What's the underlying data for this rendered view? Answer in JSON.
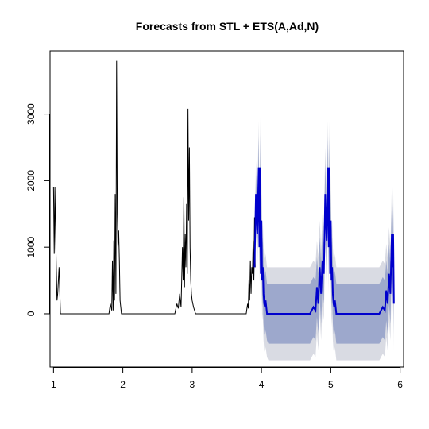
{
  "chart_data": {
    "type": "line",
    "title": "Forecasts from STL +  ETS(A,Ad,N)",
    "xlabel": "",
    "ylabel": "",
    "xlim": [
      0.95,
      6.05
    ],
    "ylim": [
      -800,
      3950
    ],
    "x_ticks": [
      1,
      2,
      3,
      4,
      5,
      6
    ],
    "y_ticks": [
      0,
      1000,
      2000,
      3000
    ],
    "grid": false,
    "legend": "none",
    "colors": {
      "history": "#000000",
      "forecast": "#0000cc",
      "band80": "#9da8cc",
      "band95": "#d9dbe3"
    },
    "history": {
      "x": [
        1.0,
        1.01,
        1.02,
        1.03,
        1.04,
        1.05,
        1.06,
        1.08,
        1.1,
        1.12,
        1.2,
        1.3,
        1.4,
        1.5,
        1.6,
        1.7,
        1.8,
        1.82,
        1.84,
        1.85,
        1.86,
        1.87,
        1.88,
        1.89,
        1.9,
        1.91,
        1.92,
        1.93,
        1.94,
        1.95,
        1.96,
        1.97,
        1.98,
        2.0,
        2.05,
        2.1,
        2.2,
        2.3,
        2.4,
        2.5,
        2.6,
        2.7,
        2.75,
        2.78,
        2.8,
        2.82,
        2.84,
        2.86,
        2.87,
        2.88,
        2.89,
        2.9,
        2.91,
        2.92,
        2.93,
        2.94,
        2.95,
        2.96,
        2.97,
        2.98,
        2.99,
        3.0,
        3.02,
        3.05,
        3.1,
        3.2,
        3.3,
        3.4,
        3.5,
        3.6,
        3.7,
        3.75,
        3.78,
        3.8,
        3.81,
        3.82,
        3.83,
        3.84,
        3.85,
        3.86,
        3.87,
        3.88,
        3.89,
        3.9,
        3.91
      ],
      "y": [
        1900,
        900,
        1900,
        1200,
        700,
        200,
        300,
        700,
        0,
        0,
        0,
        0,
        0,
        0,
        0,
        0,
        0,
        150,
        50,
        800,
        50,
        1100,
        200,
        1800,
        300,
        3800,
        1500,
        1000,
        1250,
        800,
        200,
        100,
        0,
        0,
        0,
        0,
        0,
        0,
        0,
        0,
        0,
        0,
        0,
        150,
        80,
        300,
        100,
        1000,
        500,
        1750,
        400,
        1200,
        700,
        1650,
        600,
        3080,
        1400,
        2500,
        1000,
        500,
        300,
        200,
        100,
        0,
        0,
        0,
        0,
        0,
        0,
        0,
        0,
        0,
        0,
        150,
        80,
        500,
        200,
        800,
        300,
        700,
        600,
        1100,
        500,
        1450,
        700
      ]
    },
    "forecast": {
      "x": [
        3.9,
        3.92,
        3.94,
        3.96,
        3.97,
        3.98,
        3.99,
        4.0,
        4.01,
        4.02,
        4.03,
        4.04,
        4.05,
        4.06,
        4.08,
        4.1,
        4.12,
        4.2,
        4.3,
        4.4,
        4.5,
        4.6,
        4.7,
        4.75,
        4.78,
        4.8,
        4.82,
        4.84,
        4.86,
        4.88,
        4.9,
        4.92,
        4.94,
        4.96,
        4.97,
        4.98,
        4.99,
        5.0,
        5.01,
        5.02,
        5.03,
        5.04,
        5.05,
        5.06,
        5.08,
        5.1,
        5.12,
        5.2,
        5.3,
        5.4,
        5.5,
        5.6,
        5.7,
        5.75,
        5.78,
        5.8,
        5.82,
        5.84,
        5.86,
        5.88,
        5.89,
        5.9,
        5.91
      ],
      "mean": [
        700,
        1800,
        1200,
        2200,
        1000,
        2200,
        600,
        1400,
        500,
        700,
        300,
        150,
        100,
        200,
        0,
        0,
        0,
        0,
        0,
        0,
        0,
        0,
        0,
        100,
        50,
        400,
        150,
        700,
        300,
        800,
        600,
        1800,
        1100,
        2200,
        1000,
        2200,
        600,
        1400,
        500,
        700,
        300,
        150,
        100,
        200,
        0,
        0,
        0,
        0,
        0,
        0,
        0,
        0,
        0,
        100,
        50,
        350,
        150,
        600,
        300,
        1200,
        700,
        1200,
        150
      ],
      "lower80": [
        500,
        1500,
        900,
        1750,
        650,
        1700,
        250,
        1000,
        100,
        250,
        -150,
        -300,
        -350,
        -250,
        -400,
        -450,
        -450,
        -450,
        -450,
        -450,
        -450,
        -450,
        -450,
        -350,
        -400,
        -50,
        -300,
        250,
        -150,
        350,
        150,
        1350,
        650,
        1750,
        550,
        1750,
        150,
        950,
        50,
        250,
        -150,
        -300,
        -350,
        -250,
        -450,
        -450,
        -450,
        -450,
        -450,
        -450,
        -450,
        -450,
        -450,
        -350,
        -400,
        -100,
        -300,
        150,
        -150,
        750,
        250,
        750,
        -300
      ],
      "upper80": [
        900,
        2100,
        1500,
        2650,
        1350,
        2700,
        950,
        1800,
        900,
        1150,
        750,
        600,
        550,
        650,
        450,
        450,
        450,
        450,
        450,
        450,
        450,
        450,
        450,
        550,
        500,
        850,
        600,
        1150,
        750,
        1250,
        1050,
        2250,
        1550,
        2650,
        1450,
        2650,
        1050,
        1850,
        950,
        1150,
        750,
        600,
        550,
        650,
        450,
        450,
        450,
        450,
        450,
        450,
        450,
        450,
        450,
        550,
        500,
        800,
        600,
        1050,
        750,
        1650,
        1150,
        1650,
        600
      ],
      "lower95": [
        400,
        1300,
        700,
        1500,
        450,
        1450,
        0,
        750,
        -100,
        0,
        -400,
        -550,
        -600,
        -500,
        -650,
        -700,
        -700,
        -700,
        -700,
        -700,
        -700,
        -700,
        -700,
        -600,
        -650,
        -300,
        -550,
        0,
        -400,
        100,
        -100,
        1100,
        400,
        1500,
        300,
        1500,
        -100,
        700,
        -200,
        0,
        -400,
        -550,
        -600,
        -500,
        -700,
        -700,
        -700,
        -700,
        -700,
        -700,
        -700,
        -700,
        -700,
        -600,
        -650,
        -350,
        -550,
        -100,
        -400,
        500,
        0,
        500,
        -550
      ],
      "upper95": [
        1000,
        2300,
        1700,
        2900,
        1550,
        2950,
        1200,
        2050,
        1100,
        1400,
        1000,
        850,
        800,
        900,
        700,
        700,
        700,
        700,
        700,
        700,
        700,
        700,
        700,
        800,
        750,
        1100,
        850,
        1400,
        1000,
        1500,
        1300,
        2500,
        1800,
        2900,
        1700,
        2900,
        1300,
        2100,
        1200,
        1400,
        1000,
        850,
        800,
        900,
        700,
        700,
        700,
        700,
        700,
        700,
        700,
        700,
        700,
        800,
        750,
        1050,
        850,
        1300,
        1000,
        1900,
        1400,
        1900,
        850
      ]
    }
  }
}
